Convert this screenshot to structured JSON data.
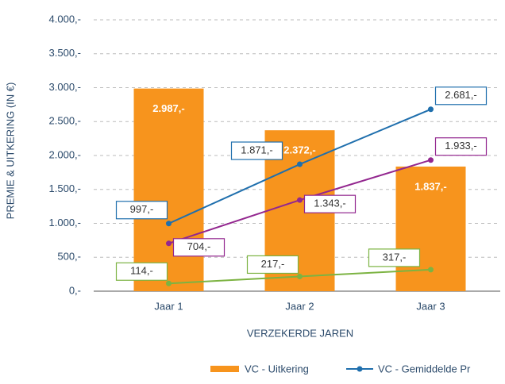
{
  "chart_data": {
    "type": "bar_line",
    "y_axis_label": "PREMIE & UITKERING (IN €)",
    "x_axis_label": "VERZEKERDE JAREN",
    "categories": [
      "Jaar 1",
      "Jaar 2",
      "Jaar 3"
    ],
    "series": [
      {
        "name": "VC - Uitkering",
        "type": "bar",
        "color": "#f7941d",
        "values": [
          2987,
          2372,
          1837
        ],
        "value_labels": [
          "2.987,-",
          "2.372,-",
          "1.837,-"
        ]
      },
      {
        "name": "VC - Gemiddelde Pr",
        "type": "line",
        "color": "#1f6fad",
        "values": [
          997,
          1871,
          2681
        ],
        "value_labels": [
          "997,-",
          "1.871,-",
          "2.681,-"
        ]
      },
      {
        "type": "line",
        "color": "#93278f",
        "values": [
          704,
          1343,
          1933
        ],
        "value_labels": [
          "704,-",
          "1.343,-",
          "1.933,-"
        ]
      },
      {
        "type": "line",
        "color": "#7cb342",
        "values": [
          114,
          217,
          317
        ],
        "value_labels": [
          "114,-",
          "217,-",
          "317,-"
        ]
      }
    ],
    "ylim": [
      0,
      4000
    ],
    "yticks": [
      {
        "value": 0,
        "label": "0,-"
      },
      {
        "value": 500,
        "label": "500,-"
      },
      {
        "value": 1000,
        "label": "1.000,-"
      },
      {
        "value": 1500,
        "label": "1.500,-"
      },
      {
        "value": 2000,
        "label": "2.000,-"
      },
      {
        "value": 2500,
        "label": "2.500,-"
      },
      {
        "value": 3000,
        "label": "3.000,-"
      },
      {
        "value": 3500,
        "label": "3.500,-"
      },
      {
        "value": 4000,
        "label": "4.000,-"
      }
    ],
    "grid": true
  }
}
